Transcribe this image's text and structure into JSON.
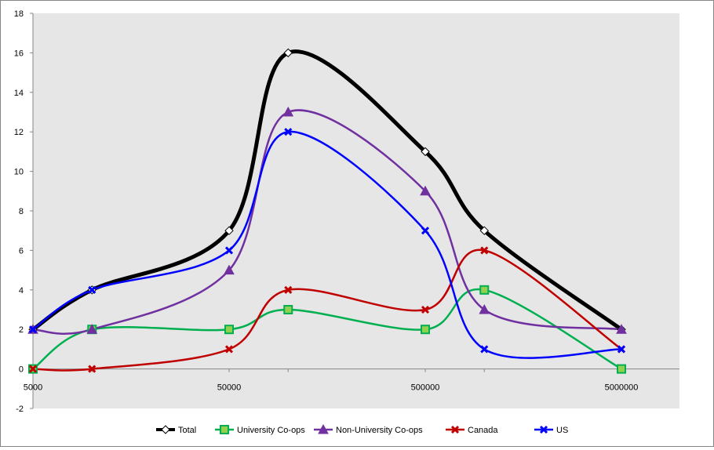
{
  "chart_data": {
    "type": "line",
    "x": [
      5000,
      10000,
      50000,
      100000,
      500000,
      1000000,
      5000000
    ],
    "x_scale": "log",
    "x_tick_labels": [
      "5000",
      "50000",
      "500000",
      "5000000"
    ],
    "y_tick_labels": [
      "-2",
      "0",
      "2",
      "4",
      "6",
      "8",
      "10",
      "12",
      "14",
      "16",
      "18"
    ],
    "ylim": [
      -2,
      18
    ],
    "grid": false,
    "plot_background": "#E6E6E6",
    "legend_position": "bottom",
    "series": [
      {
        "name": "Total",
        "values": [
          2,
          4,
          7,
          16,
          11,
          7,
          2
        ],
        "color": "#000000",
        "marker": "diamond"
      },
      {
        "name": "University Co-ops",
        "values": [
          0,
          2,
          2,
          3,
          2,
          4,
          0
        ],
        "color": "#00B050",
        "marker": "square"
      },
      {
        "name": "Non-University Co-ops",
        "values": [
          2,
          2,
          5,
          13,
          9,
          3,
          2
        ],
        "color": "#7030A0",
        "marker": "triangle"
      },
      {
        "name": "Canada",
        "values": [
          0,
          0,
          1,
          4,
          3,
          6,
          1
        ],
        "color": "#C00000",
        "marker": "x"
      },
      {
        "name": "US",
        "values": [
          2,
          4,
          6,
          12,
          7,
          1,
          1
        ],
        "color": "#0000FF",
        "marker": "x"
      }
    ]
  }
}
